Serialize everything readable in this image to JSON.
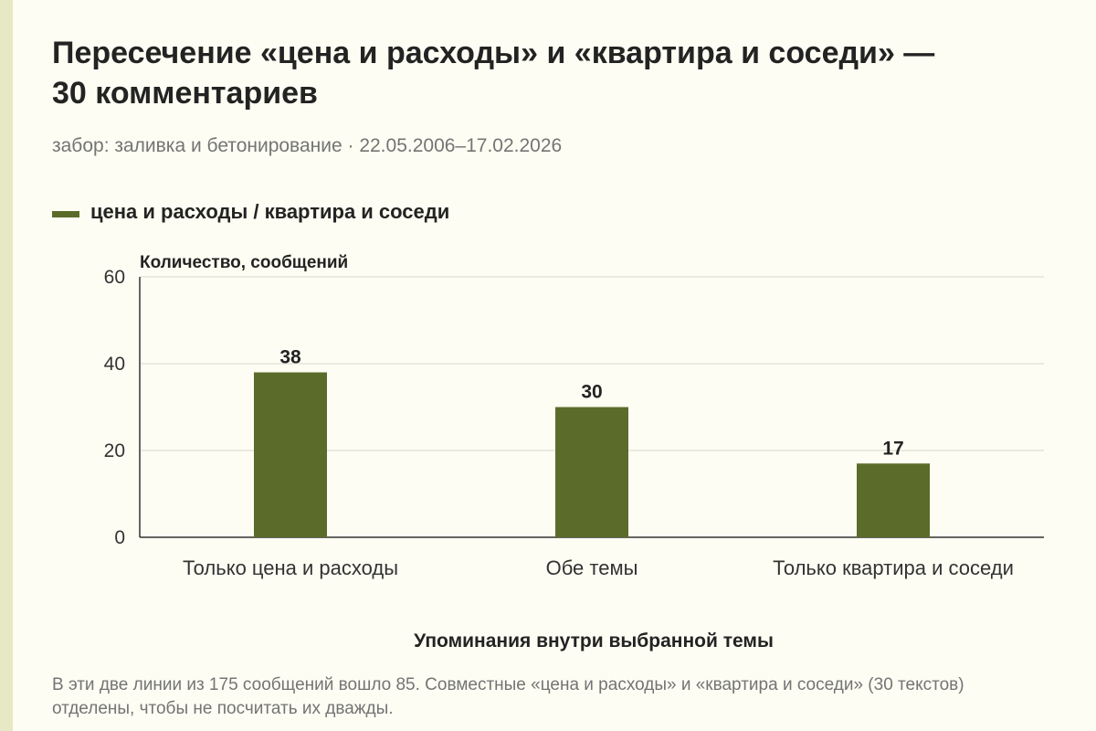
{
  "header": {
    "title": "Пересечение «цена и расходы» и «квартира и соседи» — 30 комментариев",
    "subtitle": "забор: заливка и бетонирование · 22.05.2006–17.02.2026"
  },
  "legend": {
    "label": "цена и расходы / квартира и соседи",
    "color": "#5b6c2a"
  },
  "chart_data": {
    "type": "bar",
    "categories": [
      "Только цена и расходы",
      "Обе темы",
      "Только квартира и соседи"
    ],
    "series": [
      {
        "name": "цена и расходы / квартира и соседи",
        "values": [
          38,
          30,
          17
        ]
      }
    ],
    "data_labels": [
      "38",
      "30",
      "17"
    ],
    "ylabel": "Количество, сообщений",
    "xlabel": "Упоминания внутри выбранной темы",
    "ylim": [
      0,
      60
    ],
    "yticks": [
      0,
      20,
      40,
      60
    ],
    "grid": true,
    "legend_position": "top-left",
    "bar_color": "#5b6c2a"
  },
  "footer": {
    "note": "В эти две линии из 175 сообщений вошло 85. Совместные «цена и расходы» и «квартира и соседи» (30 текстов) отделены, чтобы не посчитать их дважды."
  }
}
